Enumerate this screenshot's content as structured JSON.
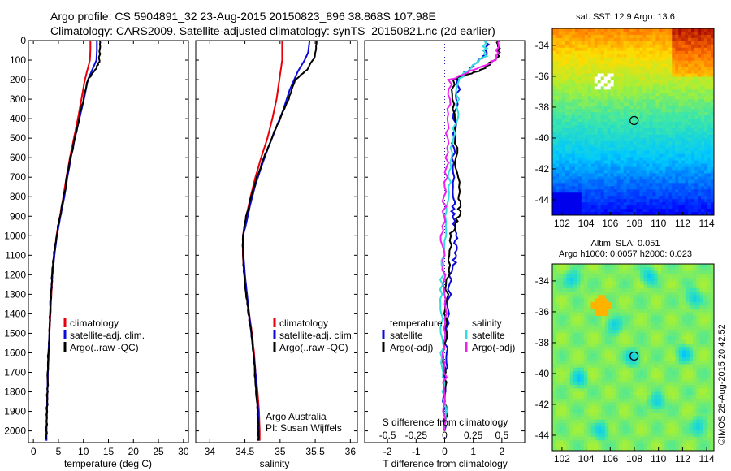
{
  "header": {
    "line1": "Argo profile: CS 5904891_32 23-Aug-2015 20150823_896 38.868S 107.98E",
    "line2": "Climatology: CARS2009. Satellite-adjusted climatology: synTS_20150821.nc (2d earlier)"
  },
  "side_stamp": "©IMOS 28-Aug-2015 20:42:52",
  "colors": {
    "climatology": "#e8000b",
    "satellite": "#0a0adc",
    "argo": "#000000",
    "sat_diff_sal": "#33dddd",
    "argo_diff_sal": "#ee22ee",
    "ref_line": "#2222aa"
  },
  "chart_data": [
    {
      "id": "temperature",
      "type": "line",
      "xlabel": "temperature (deg C)",
      "ylabel": "",
      "xlim": [
        -1,
        31
      ],
      "ylim": [
        2060,
        0
      ],
      "xticks": [
        0,
        5,
        10,
        15,
        20,
        25,
        30
      ],
      "xtick_labels": [
        "0",
        "5",
        "10",
        "15",
        "20",
        "25",
        "30"
      ],
      "yticks": [
        0,
        100,
        200,
        300,
        400,
        500,
        600,
        700,
        800,
        900,
        1000,
        1100,
        1200,
        1300,
        1400,
        1500,
        1600,
        1700,
        1800,
        1900,
        2000
      ],
      "ytick_labels": [
        "0",
        "100",
        "200",
        "300",
        "400",
        "500",
        "600",
        "700",
        "800",
        "900",
        "1000",
        "1100",
        "1200",
        "1300",
        "1400",
        "1500",
        "1600",
        "1700",
        "1800",
        "1900",
        "2000"
      ],
      "legend": [
        "climatology",
        "satellite-adj. clim.",
        "Argo(..raw -QC)"
      ],
      "series": [
        {
          "name": "climatology",
          "color": "#e8000b",
          "points": [
            [
              11.4,
              0
            ],
            [
              11.4,
              50
            ],
            [
              11.3,
              100
            ],
            [
              10.8,
              150
            ],
            [
              10.3,
              200
            ],
            [
              9.6,
              300
            ],
            [
              8.9,
              400
            ],
            [
              8.1,
              500
            ],
            [
              7.3,
              600
            ],
            [
              6.6,
              700
            ],
            [
              6.0,
              800
            ],
            [
              5.3,
              900
            ],
            [
              4.6,
              1000
            ],
            [
              4.2,
              1100
            ],
            [
              3.8,
              1200
            ],
            [
              3.6,
              1300
            ],
            [
              3.4,
              1400
            ],
            [
              3.2,
              1500
            ],
            [
              3.1,
              1600
            ],
            [
              2.9,
              1700
            ],
            [
              2.8,
              1800
            ],
            [
              2.7,
              1900
            ],
            [
              2.6,
              2000
            ],
            [
              2.6,
              2050
            ]
          ]
        },
        {
          "name": "satellite-adj. clim.",
          "color": "#0a0adc",
          "points": [
            [
              12.7,
              0
            ],
            [
              12.7,
              50
            ],
            [
              12.6,
              100
            ],
            [
              12.1,
              130
            ],
            [
              10.9,
              200
            ],
            [
              10.1,
              300
            ],
            [
              9.2,
              400
            ],
            [
              8.3,
              500
            ],
            [
              7.5,
              600
            ],
            [
              6.8,
              700
            ],
            [
              6.2,
              800
            ],
            [
              5.4,
              900
            ],
            [
              4.7,
              1000
            ],
            [
              4.2,
              1100
            ],
            [
              3.8,
              1200
            ],
            [
              3.5,
              1300
            ],
            [
              3.3,
              1400
            ],
            [
              3.2,
              1500
            ],
            [
              3.0,
              1600
            ],
            [
              2.9,
              1700
            ],
            [
              2.8,
              1800
            ],
            [
              2.7,
              1900
            ],
            [
              2.6,
              2000
            ],
            [
              2.6,
              2050
            ]
          ]
        },
        {
          "name": "Argo(..raw -QC)",
          "color": "#000000",
          "points": [
            [
              13.3,
              0
            ],
            [
              13.3,
              60
            ],
            [
              13.1,
              110
            ],
            [
              12.4,
              150
            ],
            [
              10.9,
              200
            ],
            [
              10.0,
              300
            ],
            [
              9.1,
              400
            ],
            [
              8.3,
              500
            ],
            [
              7.4,
              600
            ],
            [
              6.7,
              700
            ],
            [
              6.1,
              800
            ],
            [
              5.3,
              900
            ],
            [
              4.6,
              1000
            ],
            [
              4.1,
              1100
            ],
            [
              3.8,
              1200
            ],
            [
              3.5,
              1300
            ],
            [
              3.3,
              1400
            ],
            [
              3.2,
              1500
            ],
            [
              3.0,
              1600
            ],
            [
              2.9,
              1700
            ],
            [
              2.8,
              1800
            ],
            [
              2.7,
              1900
            ],
            [
              2.6,
              2000
            ],
            [
              2.6,
              2040
            ]
          ]
        }
      ]
    },
    {
      "id": "salinity",
      "type": "line",
      "xlabel": "salinity",
      "ylabel": "",
      "xlim": [
        33.8,
        36.1
      ],
      "ylim": [
        2060,
        0
      ],
      "xticks": [
        34,
        34.5,
        35,
        35.5,
        36
      ],
      "xtick_labels": [
        "34",
        "34.5",
        "35",
        "35.5",
        "36"
      ],
      "legend": [
        "climatology",
        "satellite-adj. clim.",
        "Argo(..raw -QC)"
      ],
      "annotations": [
        "Argo Australia",
        "PI: Susan Wijffels"
      ],
      "series": [
        {
          "name": "climatology",
          "color": "#e8000b",
          "points": [
            [
              35.03,
              0
            ],
            [
              35.03,
              100
            ],
            [
              34.99,
              200
            ],
            [
              34.95,
              300
            ],
            [
              34.89,
              400
            ],
            [
              34.82,
              500
            ],
            [
              34.73,
              600
            ],
            [
              34.65,
              700
            ],
            [
              34.58,
              800
            ],
            [
              34.52,
              900
            ],
            [
              34.47,
              1000
            ],
            [
              34.47,
              1100
            ],
            [
              34.49,
              1200
            ],
            [
              34.52,
              1300
            ],
            [
              34.56,
              1400
            ],
            [
              34.6,
              1500
            ],
            [
              34.63,
              1600
            ],
            [
              34.65,
              1700
            ],
            [
              34.68,
              1800
            ],
            [
              34.7,
              1900
            ],
            [
              34.71,
              2000
            ],
            [
              34.71,
              2050
            ]
          ]
        },
        {
          "name": "satellite-adj. clim.",
          "color": "#0a0adc",
          "points": [
            [
              35.42,
              0
            ],
            [
              35.4,
              60
            ],
            [
              35.35,
              100
            ],
            [
              35.25,
              160
            ],
            [
              35.14,
              250
            ],
            [
              35.05,
              350
            ],
            [
              34.94,
              450
            ],
            [
              34.83,
              550
            ],
            [
              34.73,
              650
            ],
            [
              34.64,
              750
            ],
            [
              34.57,
              850
            ],
            [
              34.51,
              950
            ],
            [
              34.47,
              1000
            ],
            [
              34.48,
              1100
            ],
            [
              34.5,
              1200
            ],
            [
              34.53,
              1300
            ],
            [
              34.56,
              1400
            ],
            [
              34.59,
              1500
            ],
            [
              34.62,
              1600
            ],
            [
              34.65,
              1700
            ],
            [
              34.67,
              1800
            ],
            [
              34.69,
              1900
            ],
            [
              34.7,
              2000
            ],
            [
              34.7,
              2050
            ]
          ]
        },
        {
          "name": "Argo(..raw -QC)",
          "color": "#000000",
          "points": [
            [
              35.52,
              0
            ],
            [
              35.5,
              80
            ],
            [
              35.38,
              150
            ],
            [
              35.22,
              200
            ],
            [
              35.12,
              300
            ],
            [
              35.0,
              400
            ],
            [
              34.88,
              500
            ],
            [
              34.77,
              600
            ],
            [
              34.67,
              700
            ],
            [
              34.59,
              800
            ],
            [
              34.52,
              900
            ],
            [
              34.47,
              1000
            ],
            [
              34.47,
              1100
            ],
            [
              34.49,
              1200
            ],
            [
              34.52,
              1300
            ],
            [
              34.55,
              1400
            ],
            [
              34.59,
              1500
            ],
            [
              34.62,
              1600
            ],
            [
              34.64,
              1700
            ],
            [
              34.66,
              1800
            ],
            [
              34.68,
              1900
            ],
            [
              34.69,
              2000
            ],
            [
              34.69,
              2050
            ]
          ]
        }
      ]
    },
    {
      "id": "difference",
      "type": "line",
      "xlabel": "T difference from climatology",
      "xlabel2": "S difference from climatology",
      "xlim": [
        -2.8,
        2.8
      ],
      "ylim": [
        2060,
        0
      ],
      "xticks": [
        -2,
        -1,
        0,
        1,
        2
      ],
      "xtick_labels": [
        "-2",
        "-1",
        "0",
        "1",
        "2"
      ],
      "sticks": [
        -0.5,
        -0.25,
        0,
        0.25,
        0.5
      ],
      "stick_labels": [
        "-0.5",
        "-0.25",
        "0",
        "0.25",
        "0.5"
      ],
      "s_scale": 4,
      "legend_t_title": "temperature",
      "legend_s_title": "salinity",
      "legend": [
        "satellite",
        "Argo(-adj)",
        "satellite",
        "Argo(-adj)"
      ],
      "series": [
        {
          "name": "satellite",
          "color": "#0a0adc",
          "points": [
            [
              1.5,
              0
            ],
            [
              1.4,
              80
            ],
            [
              0.9,
              140
            ],
            [
              0.5,
              200
            ],
            [
              0.35,
              400
            ],
            [
              0.3,
              600
            ],
            [
              0.3,
              800
            ],
            [
              0.3,
              900
            ],
            [
              0.4,
              1000
            ],
            [
              0.4,
              1100
            ],
            [
              0.2,
              1200
            ],
            [
              0.1,
              1400
            ],
            [
              0.05,
              1600
            ],
            [
              0.0,
              1800
            ],
            [
              0.0,
              2000
            ]
          ]
        },
        {
          "name": "Argo(-adj)",
          "color": "#000000",
          "points": [
            [
              1.9,
              0
            ],
            [
              1.9,
              80
            ],
            [
              1.3,
              150
            ],
            [
              0.3,
              200
            ],
            [
              0.35,
              400
            ],
            [
              0.4,
              600
            ],
            [
              0.55,
              800
            ],
            [
              0.5,
              900
            ],
            [
              0.2,
              1000
            ],
            [
              0.1,
              1200
            ],
            [
              0.05,
              1400
            ],
            [
              0.0,
              1600
            ],
            [
              0.0,
              1800
            ],
            [
              0.0,
              2000
            ]
          ]
        },
        {
          "name": "satellite",
          "color": "#33dddd",
          "points": [
            [
              0.35,
              0
            ],
            [
              0.35,
              80
            ],
            [
              0.2,
              150
            ],
            [
              0.12,
              200
            ],
            [
              0.1,
              400
            ],
            [
              0.05,
              600
            ],
            [
              0.03,
              800
            ],
            [
              0.0,
              1000
            ],
            [
              -0.02,
              1200
            ],
            [
              -0.03,
              1400
            ],
            [
              -0.02,
              1600
            ],
            [
              -0.01,
              1800
            ],
            [
              0.0,
              2000
            ]
          ]
        },
        {
          "name": "Argo(-adj)",
          "color": "#ee22ee",
          "points": [
            [
              0.46,
              0
            ],
            [
              0.45,
              100
            ],
            [
              0.25,
              150
            ],
            [
              0.05,
              200
            ],
            [
              0.03,
              400
            ],
            [
              0.02,
              600
            ],
            [
              0.0,
              800
            ],
            [
              -0.02,
              1000
            ],
            [
              -0.01,
              1200
            ],
            [
              0.0,
              1400
            ],
            [
              0.0,
              1600
            ],
            [
              0.0,
              1800
            ],
            [
              0.0,
              2000
            ]
          ]
        }
      ]
    },
    {
      "id": "sst_map",
      "type": "heatmap",
      "title": "sat. SST: 12.9  Argo: 13.6",
      "xlim": [
        101.2,
        114.6
      ],
      "ylim": [
        -45,
        -32.9
      ],
      "xticks": [
        102,
        104,
        106,
        108,
        110,
        112,
        114
      ],
      "xtick_labels": [
        "102",
        "104",
        "106",
        "108",
        "110",
        "112",
        "114"
      ],
      "yticks": [
        -34,
        -36,
        -38,
        -40,
        -42,
        -44
      ],
      "ytick_labels": [
        "-34",
        "-36",
        "-38",
        "-40",
        "-42",
        "-44"
      ],
      "marker": [
        107.98,
        -38.868
      ]
    },
    {
      "id": "sla_map",
      "type": "heatmap",
      "title": "Altim. SLA: 0.051",
      "subtitle": "Argo h1000: 0.0057  h2000: 0.023",
      "xlim": [
        101.2,
        114.6
      ],
      "ylim": [
        -45,
        -32.9
      ],
      "xticks": [
        102,
        104,
        106,
        108,
        110,
        112,
        114
      ],
      "xtick_labels": [
        "102",
        "104",
        "106",
        "108",
        "110",
        "112",
        "114"
      ],
      "yticks": [
        -34,
        -36,
        -38,
        -40,
        -42,
        -44
      ],
      "ytick_labels": [
        "-34",
        "-36",
        "-38",
        "-40",
        "-42",
        "-44"
      ],
      "marker": [
        107.98,
        -38.868
      ]
    }
  ]
}
